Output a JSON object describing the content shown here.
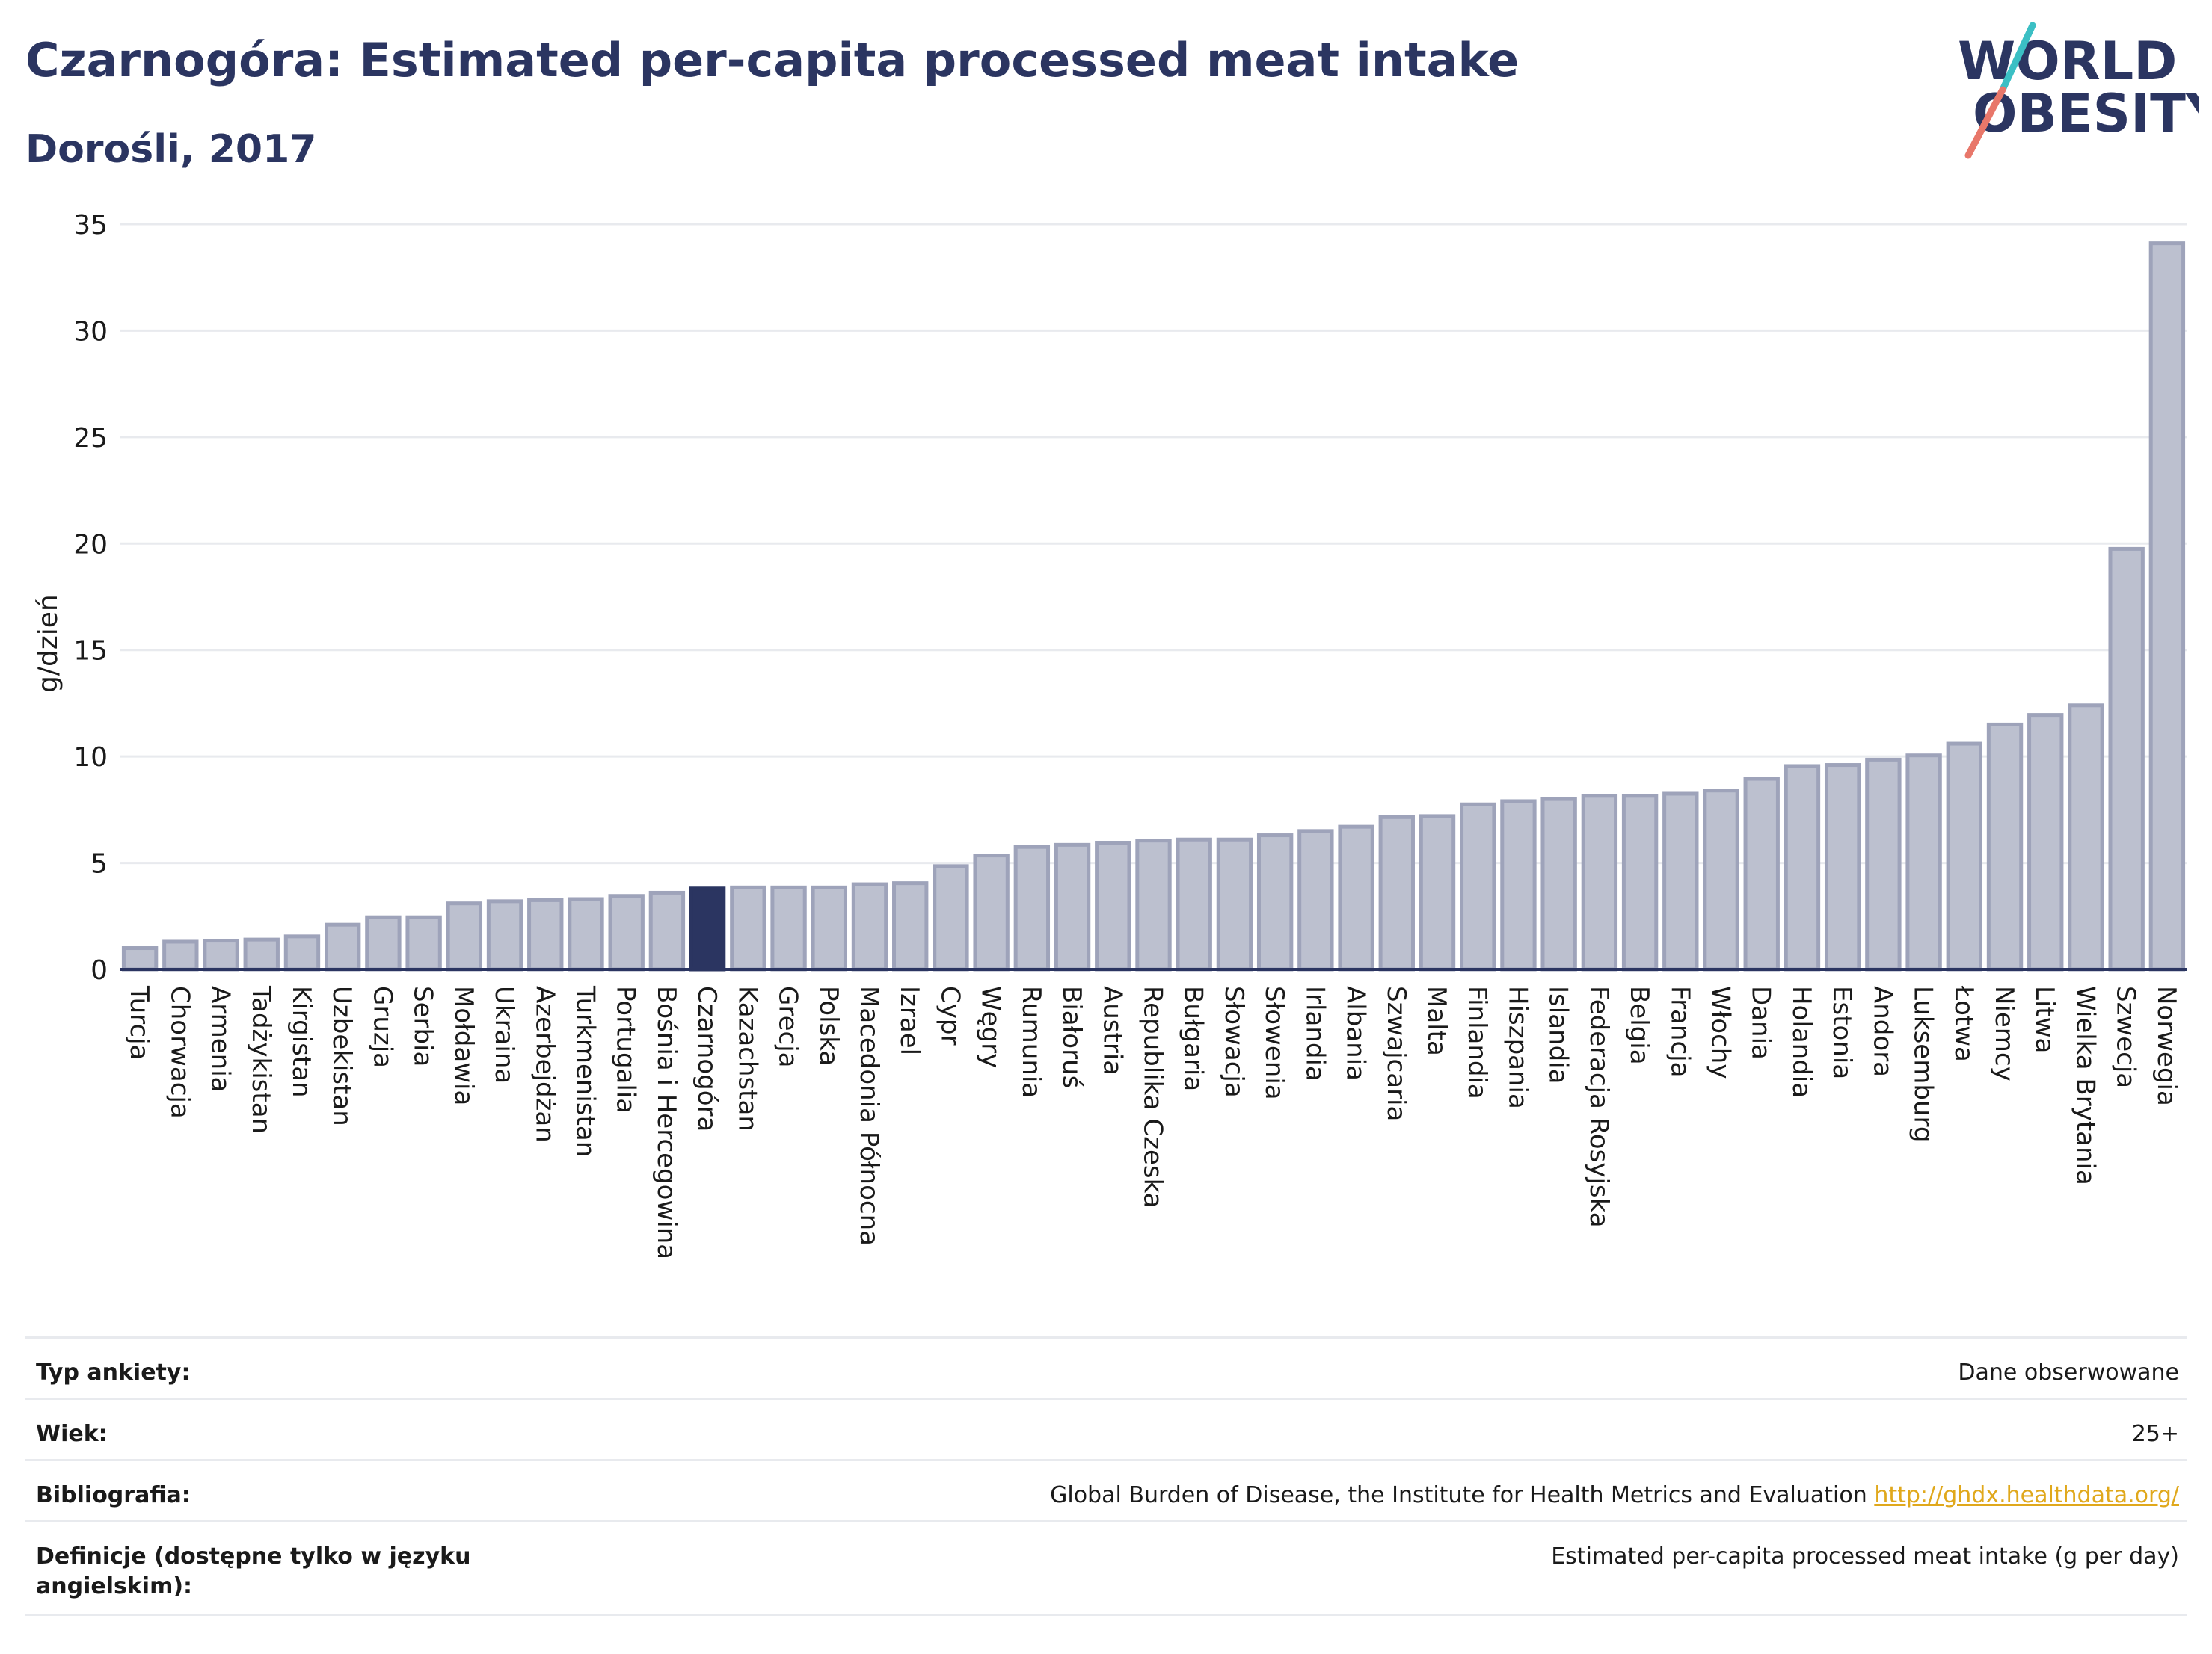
{
  "header": {
    "title": "Czarnogóra: Estimated per-capita processed meat intake",
    "subtitle": "Dorośli, 2017"
  },
  "logo": {
    "line1": "WORLD",
    "line2": "OBESITY",
    "colors": {
      "text": "#2b3561",
      "slash_teal": "#3bbfc4",
      "slash_coral": "#e8776a"
    }
  },
  "colors": {
    "bar": "#bcc0cf",
    "bar_border": "#9ea3ba",
    "highlight": "#2b3561",
    "axis_line": "#2b3561",
    "grid": "#e8eaee",
    "text": "#2b3561",
    "link": "#e0a81c"
  },
  "chart_data": {
    "type": "bar",
    "ylabel": "g/dzień",
    "ylim": [
      0,
      35
    ],
    "yticks": [
      0,
      5,
      10,
      15,
      20,
      25,
      30,
      35
    ],
    "grid": true,
    "highlight_category": "Czarnogóra",
    "categories": [
      "Turcja",
      "Chorwacja",
      "Armenia",
      "Tadżykistan",
      "Kirgistan",
      "Uzbekistan",
      "Gruzja",
      "Serbia",
      "Mołdawia",
      "Ukraina",
      "Azerbejdżan",
      "Turkmenistan",
      "Portugalia",
      "Bośnia i Hercegowina",
      "Czarnogóra",
      "Kazachstan",
      "Grecja",
      "Polska",
      "Macedonia Północna",
      "Izrael",
      "Cypr",
      "Węgry",
      "Rumunia",
      "Białoruś",
      "Austria",
      "Republika Czeska",
      "Bułgaria",
      "Słowacja",
      "Słowenia",
      "Irlandia",
      "Albania",
      "Szwajcaria",
      "Malta",
      "Finlandia",
      "Hiszpania",
      "Islandia",
      "Federacja Rosyjska",
      "Belgia",
      "Francja",
      "Włochy",
      "Dania",
      "Holandia",
      "Estonia",
      "Andora",
      "Luksemburg",
      "Łotwa",
      "Niemcy",
      "Litwa",
      "Wielka Brytania",
      "Szwecja",
      "Norwegia"
    ],
    "values": [
      1.0,
      1.3,
      1.35,
      1.4,
      1.55,
      2.1,
      2.45,
      2.45,
      3.1,
      3.2,
      3.25,
      3.3,
      3.45,
      3.6,
      3.8,
      3.85,
      3.85,
      3.85,
      4.0,
      4.05,
      4.85,
      5.35,
      5.75,
      5.85,
      5.95,
      6.05,
      6.1,
      6.1,
      6.3,
      6.5,
      6.7,
      7.15,
      7.2,
      7.75,
      7.9,
      8.0,
      8.15,
      8.15,
      8.25,
      8.4,
      8.95,
      9.55,
      9.6,
      9.85,
      10.05,
      10.6,
      11.5,
      11.95,
      12.4,
      19.75,
      34.1
    ]
  },
  "info": {
    "rows": [
      {
        "label": "Typ ankiety:",
        "value": "Dane obserwowane",
        "link": ""
      },
      {
        "label": "Wiek:",
        "value": "25+",
        "link": ""
      },
      {
        "label": "Bibliografia:",
        "value": "Global Burden of Disease, the Institute for Health Metrics and Evaluation",
        "link": "http://ghdx.healthdata.org/"
      },
      {
        "label": "Definicje (dostępne tylko w języku angielskim):",
        "value": "Estimated per-capita processed meat intake (g per day)",
        "link": ""
      }
    ]
  }
}
